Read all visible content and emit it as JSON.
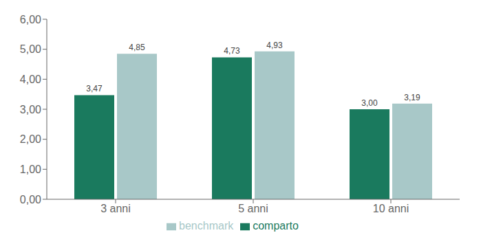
{
  "chart_data": {
    "type": "bar",
    "categories": [
      "3 anni",
      "5 anni",
      "10 anni"
    ],
    "series": [
      {
        "name": "comparto",
        "color": "#1a7a5e",
        "values": [
          3.47,
          4.73,
          3.0
        ],
        "value_labels": [
          "3,47",
          "4,73",
          "3,00"
        ]
      },
      {
        "name": "benchmark",
        "color": "#a8c8c8",
        "values": [
          4.85,
          4.93,
          3.19
        ],
        "value_labels": [
          "4,85",
          "4,93",
          "3,19"
        ]
      }
    ],
    "ylim": [
      0,
      6.0
    ],
    "yticks": [
      {
        "value": 0.0,
        "label": "0,00"
      },
      {
        "value": 1.0,
        "label": "1,00"
      },
      {
        "value": 2.0,
        "label": "2,00"
      },
      {
        "value": 3.0,
        "label": "3,00"
      },
      {
        "value": 4.0,
        "label": "4,00"
      },
      {
        "value": 5.0,
        "label": "5,00"
      },
      {
        "value": 6.0,
        "label": "6,00"
      }
    ],
    "data_labels": true,
    "grid": false,
    "legend": "bottom"
  }
}
